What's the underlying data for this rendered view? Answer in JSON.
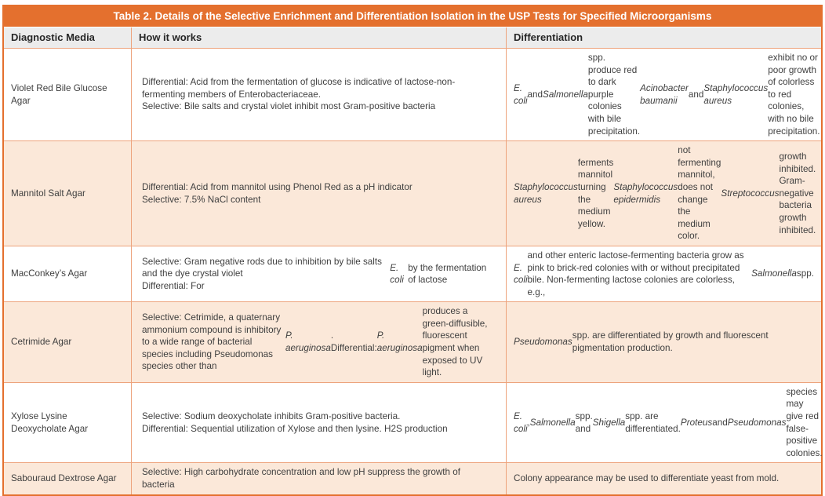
{
  "theme": {
    "orange": "#E4702E",
    "border-light": "#EDA37C",
    "peach": "#FBE8D9",
    "header-bg": "#ECECEC",
    "text": "#3F3F3F",
    "title-text": "#FFFFFF"
  },
  "table": {
    "title": "Table 2. Details of the Selective Enrichment and Differentiation Isolation in the USP Tests for Specified Microorganisms",
    "columns": [
      "Diagnostic Media",
      "How it works",
      "Differentiation"
    ],
    "rows": [
      {
        "media": "Violet Red Bile Glucose Agar",
        "how": "Differential: Acid from the fermentation of glucose is indicative of lactose-non-fermenting members of Enterobacteriaceae.<br>Selective: Bile salts and crystal violet inhibit most Gram-positive bacteria",
        "diff": "<i>E. coli</i> and <i>Salmonella</i> spp. produce red to dark purple colonies with bile precipitation. <i>Acinobacter baumanii</i> and <i>Staphylococcus aureus</i> exhibit no or poor growth of colorless to red colonies, with no bile precipitation."
      },
      {
        "media": "Mannitol Salt Agar",
        "how": "Differential: Acid from mannitol using Phenol Red as a pH indicator<br>Selective: 7.5% NaCl content",
        "diff": "<i>Staphylococcus aureus</i> ferments mannitol turning the medium yellow.<br><i>Staphylococcus epidermidis</i> not fermenting mannitol, does not change the medium color.<br><i>Streptococcus</i> growth inhibited. Gram-negative bacteria growth inhibited."
      },
      {
        "media": "MacConkey’s Agar",
        "how": "Selective: Gram negative rods due to inhibition by bile salts and the dye crystal violet<br>Differential: For <i>E. coli</i> by the fermentation of lactose",
        "diff": "<i>E. coli</i> and other enteric lactose-fermenting bacteria grow as pink to brick-red colonies with or without precipitated bile. Non-fermenting lactose colonies are colorless, e.g., <i>Salmonella</i> spp."
      },
      {
        "media": "Cetrimide Agar",
        "how": "Selective: Cetrimide, a quaternary ammonium compound is inhibitory to a wide range of bacterial species including Pseudomonas species other than <i>P. aeruginosa</i>.<br>Differential: <i>P. aeruginosa</i> produces a green-diffusible, fluorescent pigment when exposed to UV light.",
        "diff": "<i>Pseudomonas</i> spp. are differentiated by growth and fluorescent pigmentation production."
      },
      {
        "media": "Xylose Lysine Deoxycholate Agar",
        "how": "Selective: Sodium deoxycholate inhibits Gram-positive bacteria.<br>Differential: Sequential utilization of Xylose and then lysine. H2S production",
        "diff": "<i>E. coli</i>, <i>Salmonella</i> spp. and <i>Shigella</i> spp. are differentiated. <i>Proteus</i> and <i>Pseudomonas</i> species may give red false-positive colonies."
      },
      {
        "media": "Sabouraud Dextrose Agar",
        "how": "Selective: High carbohydrate concentration and low pH suppress the growth of bacteria",
        "diff": "Colony appearance may be used to differentiate yeast from mold."
      }
    ]
  }
}
